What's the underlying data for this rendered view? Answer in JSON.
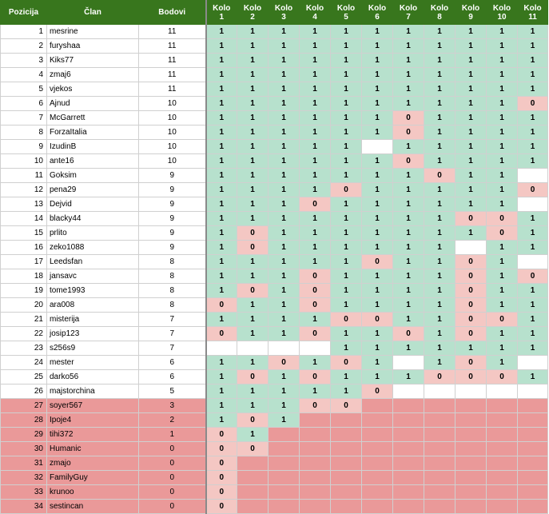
{
  "headers": {
    "position": "Pozicija",
    "member": "Član",
    "points": "Bodovi",
    "rounds": [
      {
        "word": "Kolo",
        "num": "1"
      },
      {
        "word": "Kolo",
        "num": "2"
      },
      {
        "word": "Kolo",
        "num": "3"
      },
      {
        "word": "Kolo",
        "num": "4"
      },
      {
        "word": "Kolo",
        "num": "5"
      },
      {
        "word": "Kolo",
        "num": "6"
      },
      {
        "word": "Kolo",
        "num": "7"
      },
      {
        "word": "Kolo",
        "num": "8"
      },
      {
        "word": "Kolo",
        "num": "9"
      },
      {
        "word": "Kolo",
        "num": "10"
      },
      {
        "word": "Kolo",
        "num": "11"
      }
    ]
  },
  "colors": {
    "header_bg": "#38761d",
    "win": "#b7e1cd",
    "loss": "#f4c7c3",
    "eliminated": "#ea9999"
  },
  "rows": [
    {
      "pos": "1",
      "name": "mesrine",
      "pts": "11",
      "eliminated": false,
      "rounds": [
        "1",
        "1",
        "1",
        "1",
        "1",
        "1",
        "1",
        "1",
        "1",
        "1",
        "1"
      ]
    },
    {
      "pos": "2",
      "name": "furyshaa",
      "pts": "11",
      "eliminated": false,
      "rounds": [
        "1",
        "1",
        "1",
        "1",
        "1",
        "1",
        "1",
        "1",
        "1",
        "1",
        "1"
      ]
    },
    {
      "pos": "3",
      "name": "Kiks77",
      "pts": "11",
      "eliminated": false,
      "rounds": [
        "1",
        "1",
        "1",
        "1",
        "1",
        "1",
        "1",
        "1",
        "1",
        "1",
        "1"
      ]
    },
    {
      "pos": "4",
      "name": "zmaj6",
      "pts": "11",
      "eliminated": false,
      "rounds": [
        "1",
        "1",
        "1",
        "1",
        "1",
        "1",
        "1",
        "1",
        "1",
        "1",
        "1"
      ]
    },
    {
      "pos": "5",
      "name": "vjekos",
      "pts": "11",
      "eliminated": false,
      "rounds": [
        "1",
        "1",
        "1",
        "1",
        "1",
        "1",
        "1",
        "1",
        "1",
        "1",
        "1"
      ]
    },
    {
      "pos": "6",
      "name": "Ajnud",
      "pts": "10",
      "eliminated": false,
      "rounds": [
        "1",
        "1",
        "1",
        "1",
        "1",
        "1",
        "1",
        "1",
        "1",
        "1",
        "0"
      ]
    },
    {
      "pos": "7",
      "name": "McGarrett",
      "pts": "10",
      "eliminated": false,
      "rounds": [
        "1",
        "1",
        "1",
        "1",
        "1",
        "1",
        "0",
        "1",
        "1",
        "1",
        "1"
      ]
    },
    {
      "pos": "8",
      "name": "ForzaItalia",
      "pts": "10",
      "eliminated": false,
      "rounds": [
        "1",
        "1",
        "1",
        "1",
        "1",
        "1",
        "0",
        "1",
        "1",
        "1",
        "1"
      ]
    },
    {
      "pos": "9",
      "name": "IzudinB",
      "pts": "10",
      "eliminated": false,
      "rounds": [
        "1",
        "1",
        "1",
        "1",
        "1",
        "",
        "1",
        "1",
        "1",
        "1",
        "1"
      ]
    },
    {
      "pos": "10",
      "name": "ante16",
      "pts": "10",
      "eliminated": false,
      "rounds": [
        "1",
        "1",
        "1",
        "1",
        "1",
        "1",
        "0",
        "1",
        "1",
        "1",
        "1"
      ]
    },
    {
      "pos": "11",
      "name": "Goksim",
      "pts": "9",
      "eliminated": false,
      "rounds": [
        "1",
        "1",
        "1",
        "1",
        "1",
        "1",
        "1",
        "0",
        "1",
        "1",
        ""
      ]
    },
    {
      "pos": "12",
      "name": "pena29",
      "pts": "9",
      "eliminated": false,
      "rounds": [
        "1",
        "1",
        "1",
        "1",
        "0",
        "1",
        "1",
        "1",
        "1",
        "1",
        "0"
      ]
    },
    {
      "pos": "13",
      "name": "Dejvid",
      "pts": "9",
      "eliminated": false,
      "rounds": [
        "1",
        "1",
        "1",
        "0",
        "1",
        "1",
        "1",
        "1",
        "1",
        "1",
        ""
      ]
    },
    {
      "pos": "14",
      "name": "blacky44",
      "pts": "9",
      "eliminated": false,
      "rounds": [
        "1",
        "1",
        "1",
        "1",
        "1",
        "1",
        "1",
        "1",
        "0",
        "0",
        "1"
      ]
    },
    {
      "pos": "15",
      "name": "prlito",
      "pts": "9",
      "eliminated": false,
      "rounds": [
        "1",
        "0",
        "1",
        "1",
        "1",
        "1",
        "1",
        "1",
        "1",
        "0",
        "1"
      ]
    },
    {
      "pos": "16",
      "name": "zeko1088",
      "pts": "9",
      "eliminated": false,
      "rounds": [
        "1",
        "0",
        "1",
        "1",
        "1",
        "1",
        "1",
        "1",
        "",
        "1",
        "1"
      ]
    },
    {
      "pos": "17",
      "name": "Leedsfan",
      "pts": "8",
      "eliminated": false,
      "rounds": [
        "1",
        "1",
        "1",
        "1",
        "1",
        "0",
        "1",
        "1",
        "0",
        "1",
        ""
      ]
    },
    {
      "pos": "18",
      "name": "jansavc",
      "pts": "8",
      "eliminated": false,
      "rounds": [
        "1",
        "1",
        "1",
        "0",
        "1",
        "1",
        "1",
        "1",
        "0",
        "1",
        "0"
      ]
    },
    {
      "pos": "19",
      "name": "tome1993",
      "pts": "8",
      "eliminated": false,
      "rounds": [
        "1",
        "0",
        "1",
        "0",
        "1",
        "1",
        "1",
        "1",
        "0",
        "1",
        "1"
      ]
    },
    {
      "pos": "20",
      "name": "ara008",
      "pts": "8",
      "eliminated": false,
      "rounds": [
        "0",
        "1",
        "1",
        "0",
        "1",
        "1",
        "1",
        "1",
        "0",
        "1",
        "1"
      ]
    },
    {
      "pos": "21",
      "name": "misterija",
      "pts": "7",
      "eliminated": false,
      "rounds": [
        "1",
        "1",
        "1",
        "1",
        "0",
        "0",
        "1",
        "1",
        "0",
        "0",
        "1"
      ]
    },
    {
      "pos": "22",
      "name": "josip123",
      "pts": "7",
      "eliminated": false,
      "rounds": [
        "0",
        "1",
        "1",
        "0",
        "1",
        "1",
        "0",
        "1",
        "0",
        "1",
        "1"
      ]
    },
    {
      "pos": "23",
      "name": "s256s9",
      "pts": "7",
      "eliminated": false,
      "rounds": [
        "",
        "",
        "",
        "",
        "1",
        "1",
        "1",
        "1",
        "1",
        "1",
        "1"
      ]
    },
    {
      "pos": "24",
      "name": "mester",
      "pts": "6",
      "eliminated": false,
      "rounds": [
        "1",
        "1",
        "0",
        "1",
        "0",
        "1",
        "",
        "1",
        "0",
        "1",
        ""
      ]
    },
    {
      "pos": "25",
      "name": "darko56",
      "pts": "6",
      "eliminated": false,
      "rounds": [
        "1",
        "0",
        "1",
        "0",
        "1",
        "1",
        "1",
        "0",
        "0",
        "0",
        "1"
      ]
    },
    {
      "pos": "26",
      "name": "majstorchina",
      "pts": "5",
      "eliminated": false,
      "rounds": [
        "1",
        "1",
        "1",
        "1",
        "1",
        "0",
        "",
        "",
        "",
        "",
        ""
      ]
    },
    {
      "pos": "27",
      "name": "soyer567",
      "pts": "3",
      "eliminated": true,
      "rounds": [
        "1",
        "1",
        "1",
        "0",
        "0",
        "x",
        "x",
        "x",
        "x",
        "x",
        "x"
      ]
    },
    {
      "pos": "28",
      "name": "Ipoje4",
      "pts": "2",
      "eliminated": true,
      "rounds": [
        "1",
        "0",
        "1",
        "x",
        "x",
        "x",
        "x",
        "x",
        "x",
        "x",
        "x"
      ]
    },
    {
      "pos": "29",
      "name": "tihi372",
      "pts": "1",
      "eliminated": true,
      "rounds": [
        "0",
        "1",
        "x",
        "x",
        "x",
        "x",
        "x",
        "x",
        "x",
        "x",
        "x"
      ]
    },
    {
      "pos": "30",
      "name": "Humanic",
      "pts": "0",
      "eliminated": true,
      "rounds": [
        "0",
        "0",
        "x",
        "x",
        "x",
        "x",
        "x",
        "x",
        "x",
        "x",
        "x"
      ]
    },
    {
      "pos": "31",
      "name": "zmajo",
      "pts": "0",
      "eliminated": true,
      "rounds": [
        "0",
        "x",
        "x",
        "x",
        "x",
        "x",
        "x",
        "x",
        "x",
        "x",
        "x"
      ]
    },
    {
      "pos": "32",
      "name": "FamilyGuy",
      "pts": "0",
      "eliminated": true,
      "rounds": [
        "0",
        "x",
        "x",
        "x",
        "x",
        "x",
        "x",
        "x",
        "x",
        "x",
        "x"
      ]
    },
    {
      "pos": "33",
      "name": "krunoo",
      "pts": "0",
      "eliminated": true,
      "rounds": [
        "0",
        "x",
        "x",
        "x",
        "x",
        "x",
        "x",
        "x",
        "x",
        "x",
        "x"
      ]
    },
    {
      "pos": "34",
      "name": "sestincan",
      "pts": "0",
      "eliminated": true,
      "rounds": [
        "0",
        "x",
        "x",
        "x",
        "x",
        "x",
        "x",
        "x",
        "x",
        "x",
        "x"
      ]
    }
  ]
}
